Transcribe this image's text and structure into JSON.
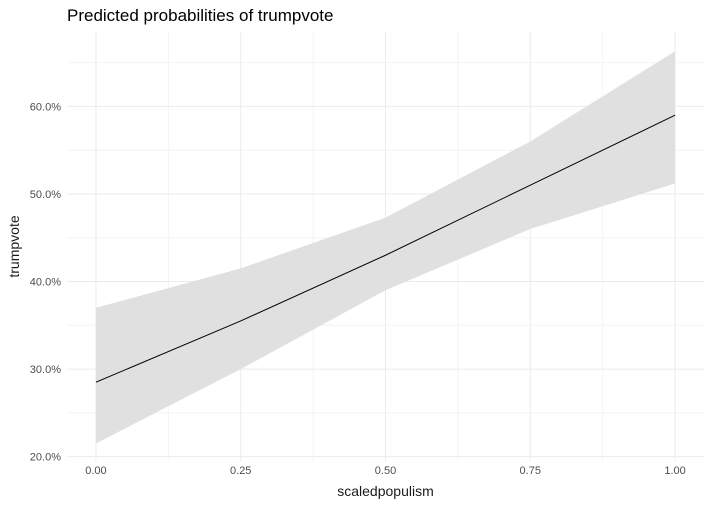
{
  "chart_data": {
    "type": "line",
    "title": "Predicted probabilities of trumpvote",
    "xlabel": "scaledpopulism",
    "ylabel": "trumpvote",
    "x": [
      0.0,
      0.25,
      0.5,
      0.75,
      1.0
    ],
    "series": [
      {
        "values": [
          0.285,
          0.355,
          0.43,
          0.51,
          0.59
        ],
        "ci_lower": [
          0.215,
          0.3,
          0.39,
          0.46,
          0.512
        ],
        "ci_upper": [
          0.37,
          0.415,
          0.473,
          0.56,
          0.663
        ]
      }
    ],
    "xlim": [
      -0.05,
      1.05
    ],
    "ylim": [
      0.195,
      0.685
    ],
    "x_ticks": [
      0.0,
      0.25,
      0.5,
      0.75,
      1.0
    ],
    "x_tick_labels": [
      "0.00",
      "0.25",
      "0.50",
      "0.75",
      "1.00"
    ],
    "y_ticks": [
      0.2,
      0.3,
      0.4,
      0.5,
      0.6
    ],
    "y_tick_labels": [
      "20.0%",
      "30.0%",
      "40.0%",
      "50.0%",
      "60.0%"
    ],
    "grid": true,
    "legend": "none",
    "colors": {
      "line": "#000000",
      "ribbon": "#e0e0e0",
      "grid_major": "#ebebeb",
      "grid_minor": "#f4f4f4",
      "tick_text": "#4d4d4d"
    }
  }
}
